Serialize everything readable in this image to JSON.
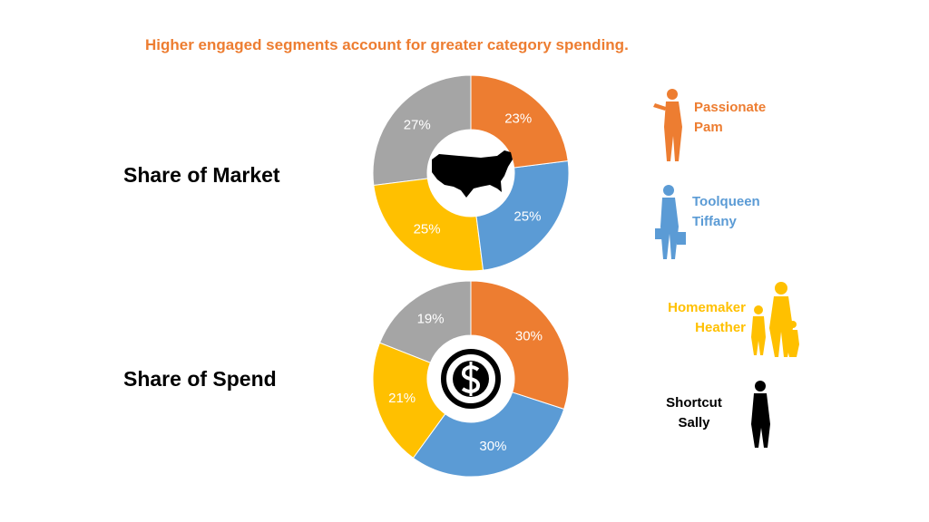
{
  "headline": "Higher engaged segments account for greater category spending.",
  "segments": [
    {
      "name": "Passionate Pam",
      "color": "#ed7d31"
    },
    {
      "name": "Toolqueen Tiffany",
      "color": "#5b9bd5"
    },
    {
      "name": "Homemaker Heather",
      "color": "#ffc000"
    },
    {
      "name": "Shortcut Sally",
      "color": "#a5a5a5"
    }
  ],
  "chart_data": [
    {
      "type": "donut",
      "title": "Share of Market",
      "values": [
        23,
        25,
        25,
        27
      ],
      "value_labels": [
        "23%",
        "25%",
        "25%",
        "27%"
      ]
    },
    {
      "type": "donut",
      "title": "Share of Spend",
      "values": [
        30,
        30,
        21,
        19
      ],
      "value_labels": [
        "30%",
        "30%",
        "21%",
        "19%"
      ]
    }
  ]
}
